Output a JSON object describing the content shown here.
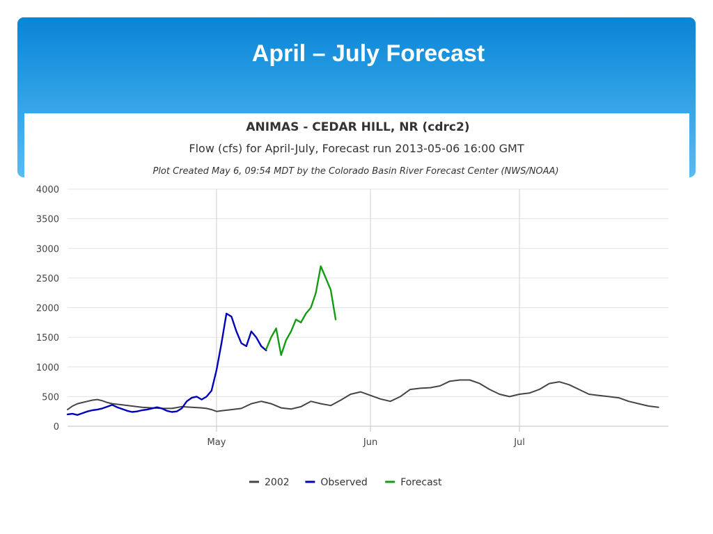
{
  "slide": {
    "title": "April – July Forecast"
  },
  "chart_data": {
    "type": "line",
    "title": "ANIMAS - CEDAR HILL, NR (cdrc2)",
    "subtitle": "Flow (cfs) for April-July, Forecast run 2013-05-06 16:00 GMT",
    "note": "Plot Created May 6, 09:54 MDT by the Colorado Basin River Forecast Center (NWS/NOAA)",
    "xlabel": "",
    "ylabel": "",
    "x_range": [
      "2002-04-01",
      "2002-07-31"
    ],
    "x_ticks": [
      {
        "label": "May",
        "date": "2002-05-01"
      },
      {
        "label": "Jun",
        "date": "2002-06-01"
      },
      {
        "label": "Jul",
        "date": "2002-07-01"
      }
    ],
    "ylim": [
      0,
      4000
    ],
    "y_ticks": [
      0,
      500,
      1000,
      1500,
      2000,
      2500,
      3000,
      3500,
      4000
    ],
    "grid": "on",
    "legend_position": "bottom-center",
    "series": [
      {
        "name": "2002",
        "color": "#444444",
        "points": [
          [
            "2002-04-01",
            280
          ],
          [
            "2002-04-02",
            340
          ],
          [
            "2002-04-03",
            380
          ],
          [
            "2002-04-04",
            400
          ],
          [
            "2002-04-05",
            420
          ],
          [
            "2002-04-06",
            440
          ],
          [
            "2002-04-07",
            450
          ],
          [
            "2002-04-08",
            430
          ],
          [
            "2002-04-09",
            400
          ],
          [
            "2002-04-10",
            380
          ],
          [
            "2002-04-12",
            360
          ],
          [
            "2002-04-14",
            340
          ],
          [
            "2002-04-16",
            320
          ],
          [
            "2002-04-18",
            310
          ],
          [
            "2002-04-20",
            300
          ],
          [
            "2002-04-22",
            300
          ],
          [
            "2002-04-24",
            330
          ],
          [
            "2002-04-26",
            320
          ],
          [
            "2002-04-28",
            310
          ],
          [
            "2002-04-29",
            300
          ],
          [
            "2002-04-30",
            280
          ],
          [
            "2002-05-01",
            250
          ],
          [
            "2002-05-02",
            260
          ],
          [
            "2002-05-04",
            280
          ],
          [
            "2002-05-06",
            300
          ],
          [
            "2002-05-08",
            380
          ],
          [
            "2002-05-10",
            420
          ],
          [
            "2002-05-12",
            380
          ],
          [
            "2002-05-14",
            310
          ],
          [
            "2002-05-16",
            290
          ],
          [
            "2002-05-18",
            330
          ],
          [
            "2002-05-20",
            420
          ],
          [
            "2002-05-22",
            380
          ],
          [
            "2002-05-24",
            350
          ],
          [
            "2002-05-26",
            440
          ],
          [
            "2002-05-28",
            540
          ],
          [
            "2002-05-30",
            580
          ],
          [
            "2002-06-01",
            520
          ],
          [
            "2002-06-03",
            460
          ],
          [
            "2002-06-05",
            420
          ],
          [
            "2002-06-07",
            500
          ],
          [
            "2002-06-09",
            620
          ],
          [
            "2002-06-11",
            640
          ],
          [
            "2002-06-13",
            650
          ],
          [
            "2002-06-15",
            680
          ],
          [
            "2002-06-17",
            760
          ],
          [
            "2002-06-19",
            780
          ],
          [
            "2002-06-21",
            780
          ],
          [
            "2002-06-23",
            720
          ],
          [
            "2002-06-25",
            620
          ],
          [
            "2002-06-27",
            540
          ],
          [
            "2002-06-29",
            500
          ],
          [
            "2002-07-01",
            540
          ],
          [
            "2002-07-03",
            560
          ],
          [
            "2002-07-05",
            620
          ],
          [
            "2002-07-07",
            720
          ],
          [
            "2002-07-09",
            750
          ],
          [
            "2002-07-11",
            700
          ],
          [
            "2002-07-13",
            620
          ],
          [
            "2002-07-15",
            540
          ],
          [
            "2002-07-17",
            520
          ],
          [
            "2002-07-19",
            500
          ],
          [
            "2002-07-21",
            480
          ],
          [
            "2002-07-23",
            420
          ],
          [
            "2002-07-25",
            380
          ],
          [
            "2002-07-27",
            340
          ],
          [
            "2002-07-29",
            320
          ]
        ]
      },
      {
        "name": "Observed",
        "color": "#0000b8",
        "points": [
          [
            "2002-04-01",
            200
          ],
          [
            "2002-04-02",
            210
          ],
          [
            "2002-04-03",
            190
          ],
          [
            "2002-04-04",
            220
          ],
          [
            "2002-04-05",
            250
          ],
          [
            "2002-04-06",
            270
          ],
          [
            "2002-04-07",
            280
          ],
          [
            "2002-04-08",
            300
          ],
          [
            "2002-04-09",
            330
          ],
          [
            "2002-04-10",
            360
          ],
          [
            "2002-04-11",
            320
          ],
          [
            "2002-04-12",
            290
          ],
          [
            "2002-04-13",
            260
          ],
          [
            "2002-04-14",
            240
          ],
          [
            "2002-04-15",
            250
          ],
          [
            "2002-04-16",
            270
          ],
          [
            "2002-04-17",
            280
          ],
          [
            "2002-04-18",
            300
          ],
          [
            "2002-04-19",
            320
          ],
          [
            "2002-04-20",
            300
          ],
          [
            "2002-04-21",
            260
          ],
          [
            "2002-04-22",
            240
          ],
          [
            "2002-04-23",
            250
          ],
          [
            "2002-04-24",
            300
          ],
          [
            "2002-04-25",
            420
          ],
          [
            "2002-04-26",
            480
          ],
          [
            "2002-04-27",
            500
          ],
          [
            "2002-04-28",
            450
          ],
          [
            "2002-04-29",
            500
          ],
          [
            "2002-04-30",
            600
          ],
          [
            "2002-05-01",
            950
          ],
          [
            "2002-05-02",
            1400
          ],
          [
            "2002-05-03",
            1900
          ],
          [
            "2002-05-04",
            1850
          ],
          [
            "2002-05-05",
            1600
          ],
          [
            "2002-05-06",
            1400
          ],
          [
            "2002-05-07",
            1350
          ],
          [
            "2002-05-08",
            1600
          ],
          [
            "2002-05-09",
            1500
          ],
          [
            "2002-05-10",
            1350
          ],
          [
            "2002-05-11",
            1280
          ]
        ]
      },
      {
        "name": "Forecast",
        "color": "#129c12",
        "points": [
          [
            "2002-05-11",
            1300
          ],
          [
            "2002-05-12",
            1500
          ],
          [
            "2002-05-13",
            1650
          ],
          [
            "2002-05-14",
            1200
          ],
          [
            "2002-05-15",
            1450
          ],
          [
            "2002-05-16",
            1600
          ],
          [
            "2002-05-17",
            1800
          ],
          [
            "2002-05-18",
            1750
          ],
          [
            "2002-05-19",
            1900
          ],
          [
            "2002-05-20",
            2000
          ],
          [
            "2002-05-21",
            2250
          ],
          [
            "2002-05-22",
            2700
          ],
          [
            "2002-05-23",
            2500
          ],
          [
            "2002-05-24",
            2300
          ],
          [
            "2002-05-25",
            1800
          ]
        ]
      }
    ]
  }
}
